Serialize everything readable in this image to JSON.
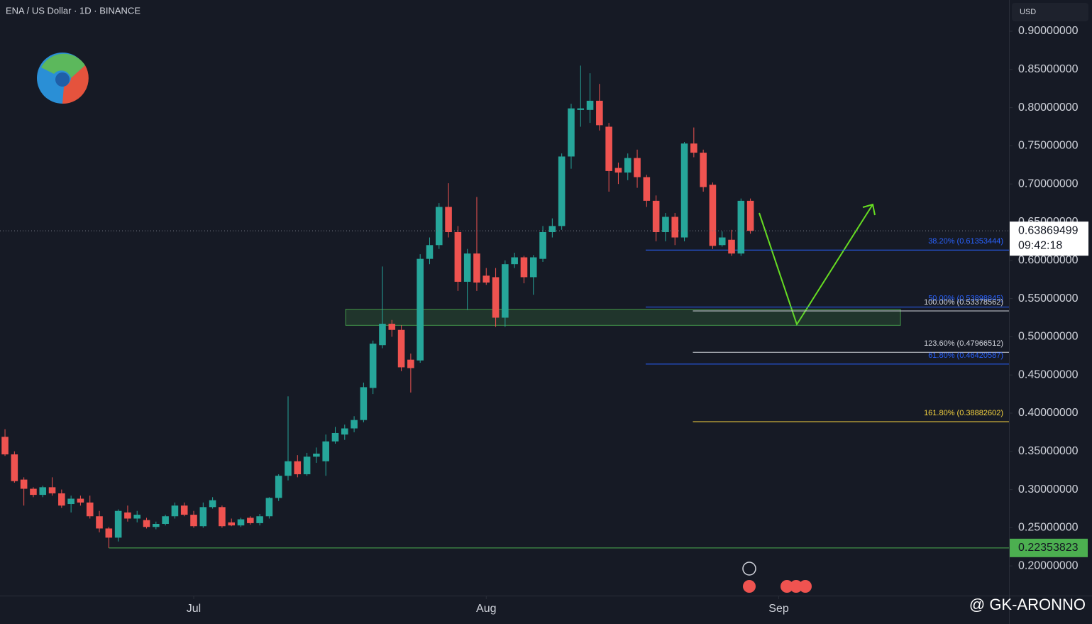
{
  "chart_data": {
    "type": "candlestick",
    "title": "ENA / US Dollar · 1D · BINANCE",
    "currency": "USD",
    "colors": {
      "up": "#26a69a",
      "down": "#ef5350"
    },
    "ylim": [
      0.1602,
      0.9409
    ],
    "xlim": [
      -0.53,
      106.4
    ],
    "yticks": [
      {
        "value": 0.9,
        "label": "0.90000000"
      },
      {
        "value": 0.85,
        "label": "0.85000000"
      },
      {
        "value": 0.8,
        "label": "0.80000000"
      },
      {
        "value": 0.75,
        "label": "0.75000000"
      },
      {
        "value": 0.7,
        "label": "0.70000000"
      },
      {
        "value": 0.65,
        "label": "0.65000000"
      },
      {
        "value": 0.6,
        "label": "0.60000000"
      },
      {
        "value": 0.55,
        "label": "0.55000000"
      },
      {
        "value": 0.5,
        "label": "0.50000000"
      },
      {
        "value": 0.45,
        "label": "0.45000000"
      },
      {
        "value": 0.4,
        "label": "0.40000000"
      },
      {
        "value": 0.35,
        "label": "0.35000000"
      },
      {
        "value": 0.3,
        "label": "0.30000000"
      },
      {
        "value": 0.25,
        "label": "0.25000000"
      },
      {
        "value": 0.2,
        "label": "0.20000000"
      }
    ],
    "xticks": [
      {
        "value": 20,
        "label": "Jul"
      },
      {
        "value": 51,
        "label": "Aug"
      },
      {
        "value": 82,
        "label": "Sep"
      }
    ],
    "candles": [
      [
        0.369,
        0.379,
        0.344,
        0.346
      ],
      [
        0.346,
        0.35,
        0.309,
        0.311
      ],
      [
        0.313,
        0.316,
        0.279,
        0.301
      ],
      [
        0.301,
        0.303,
        0.29,
        0.293
      ],
      [
        0.293,
        0.305,
        0.29,
        0.303
      ],
      [
        0.303,
        0.316,
        0.292,
        0.295
      ],
      [
        0.295,
        0.3,
        0.276,
        0.279
      ],
      [
        0.281,
        0.292,
        0.27,
        0.288
      ],
      [
        0.288,
        0.292,
        0.279,
        0.283
      ],
      [
        0.283,
        0.292,
        0.262,
        0.265
      ],
      [
        0.265,
        0.272,
        0.244,
        0.249
      ],
      [
        0.249,
        0.251,
        0.22353823,
        0.237
      ],
      [
        0.237,
        0.274,
        0.232,
        0.272
      ],
      [
        0.27,
        0.279,
        0.258,
        0.262
      ],
      [
        0.262,
        0.272,
        0.257,
        0.267
      ],
      [
        0.26,
        0.263,
        0.249,
        0.251
      ],
      [
        0.251,
        0.258,
        0.248,
        0.255
      ],
      [
        0.255,
        0.267,
        0.253,
        0.265
      ],
      [
        0.265,
        0.283,
        0.262,
        0.279
      ],
      [
        0.279,
        0.283,
        0.265,
        0.267
      ],
      [
        0.267,
        0.272,
        0.25,
        0.252
      ],
      [
        0.252,
        0.283,
        0.25,
        0.277
      ],
      [
        0.277,
        0.29,
        0.275,
        0.286
      ],
      [
        0.277,
        0.279,
        0.25,
        0.252
      ],
      [
        0.257,
        0.262,
        0.252,
        0.253
      ],
      [
        0.253,
        0.263,
        0.251,
        0.261
      ],
      [
        0.263,
        0.265,
        0.254,
        0.256
      ],
      [
        0.256,
        0.268,
        0.253,
        0.265
      ],
      [
        0.265,
        0.29,
        0.262,
        0.289
      ],
      [
        0.289,
        0.32,
        0.285,
        0.318
      ],
      [
        0.318,
        0.422,
        0.312,
        0.337
      ],
      [
        0.337,
        0.345,
        0.316,
        0.32
      ],
      [
        0.32,
        0.348,
        0.318,
        0.343
      ],
      [
        0.343,
        0.355,
        0.335,
        0.347
      ],
      [
        0.337,
        0.372,
        0.318,
        0.363
      ],
      [
        0.363,
        0.382,
        0.36,
        0.374
      ],
      [
        0.372,
        0.385,
        0.365,
        0.38
      ],
      [
        0.38,
        0.396,
        0.375,
        0.391
      ],
      [
        0.391,
        0.44,
        0.388,
        0.434
      ],
      [
        0.433,
        0.495,
        0.425,
        0.491
      ],
      [
        0.489,
        0.592,
        0.485,
        0.517
      ],
      [
        0.517,
        0.522,
        0.5,
        0.509
      ],
      [
        0.509,
        0.515,
        0.455,
        0.46
      ],
      [
        0.47,
        0.478,
        0.427,
        0.459
      ],
      [
        0.469,
        0.608,
        0.466,
        0.602
      ],
      [
        0.602,
        0.63,
        0.595,
        0.62
      ],
      [
        0.62,
        0.675,
        0.615,
        0.67
      ],
      [
        0.67,
        0.701,
        0.63,
        0.637
      ],
      [
        0.637,
        0.645,
        0.56,
        0.572
      ],
      [
        0.572,
        0.615,
        0.535,
        0.609
      ],
      [
        0.609,
        0.683,
        0.56,
        0.571
      ],
      [
        0.58,
        0.59,
        0.568,
        0.571
      ],
      [
        0.578,
        0.59,
        0.513,
        0.525
      ],
      [
        0.525,
        0.6,
        0.513,
        0.595
      ],
      [
        0.595,
        0.61,
        0.59,
        0.604
      ],
      [
        0.604,
        0.606,
        0.57,
        0.578
      ],
      [
        0.578,
        0.607,
        0.555,
        0.604
      ],
      [
        0.602,
        0.645,
        0.598,
        0.637
      ],
      [
        0.637,
        0.655,
        0.63,
        0.645
      ],
      [
        0.645,
        0.74,
        0.64,
        0.736
      ],
      [
        0.736,
        0.805,
        0.72,
        0.799
      ],
      [
        0.797,
        0.855,
        0.775,
        0.799
      ],
      [
        0.797,
        0.845,
        0.78,
        0.809
      ],
      [
        0.809,
        0.831,
        0.77,
        0.777
      ],
      [
        0.775,
        0.78,
        0.69,
        0.717
      ],
      [
        0.721,
        0.728,
        0.7,
        0.715
      ],
      [
        0.715,
        0.74,
        0.705,
        0.734
      ],
      [
        0.734,
        0.745,
        0.695,
        0.709
      ],
      [
        0.709,
        0.712,
        0.67,
        0.678
      ],
      [
        0.678,
        0.685,
        0.625,
        0.637
      ],
      [
        0.637,
        0.662,
        0.625,
        0.657
      ],
      [
        0.657,
        0.662,
        0.62,
        0.63
      ],
      [
        0.63,
        0.755,
        0.625,
        0.753
      ],
      [
        0.753,
        0.774,
        0.735,
        0.741
      ],
      [
        0.741,
        0.745,
        0.69,
        0.696
      ],
      [
        0.699,
        0.702,
        0.615,
        0.619
      ],
      [
        0.62,
        0.638,
        0.618,
        0.63
      ],
      [
        0.627,
        0.64,
        0.606,
        0.609
      ],
      [
        0.609,
        0.681,
        0.606,
        0.678
      ],
      [
        0.678,
        0.681,
        0.635,
        0.63869499
      ]
    ],
    "countdown": "09:42:18",
    "support": {
      "value": 0.22353823,
      "label": "0.22353823",
      "color": "#4caf50"
    },
    "zone": [
      0.515,
      0.536
    ],
    "fib_levels": [
      {
        "value": 0.61353444,
        "label": "38.20% (0.61353444)",
        "color": "#2962ff",
        "group": "retracement"
      },
      {
        "value": 0.53898845,
        "label": "50.00% (0.53898845)",
        "color": "#2962ff",
        "group": "retracement"
      },
      {
        "value": 0.53378562,
        "label": "100.00% (0.53378562)",
        "color": "#d1d4dc",
        "group": "extension"
      },
      {
        "value": 0.47966512,
        "label": "123.60% (0.47966512)",
        "color": "#d1d4dc",
        "group": "extension"
      },
      {
        "value": 0.46420587,
        "label": "61.80% (0.46420587)",
        "color": "#2962ff",
        "group": "retracement"
      },
      {
        "value": 0.38882602,
        "label": "161.80% (0.38882602)",
        "color": "#f5d33f",
        "group": "extension"
      }
    ],
    "watermark": "@ GK-ARONNO"
  }
}
